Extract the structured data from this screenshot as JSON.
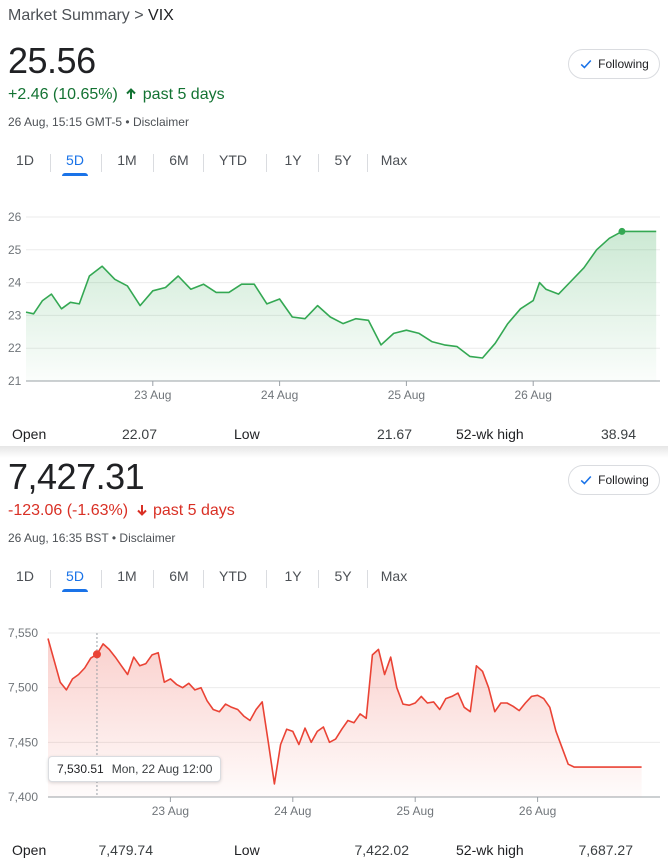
{
  "breadcrumb": {
    "parent": "Market Summary",
    "separator": " > ",
    "current": "VIX"
  },
  "tabs": [
    "1D",
    "5D",
    "1M",
    "6M",
    "YTD",
    "1Y",
    "5Y",
    "Max"
  ],
  "follow_label": "Following",
  "vix": {
    "price": "25.56",
    "change": "+2.46 (10.65%)",
    "period": "past 5 days",
    "timestamp": "26 Aug, 15:15 GMT-5",
    "disclaimer": "Disclaimer",
    "active_tab": "5D",
    "stats": {
      "open_label": "Open",
      "open": "22.07",
      "low_label": "Low",
      "low": "21.67",
      "high52_label": "52-wk high",
      "high52": "38.94"
    }
  },
  "ftse": {
    "price": "7,427.31",
    "change": "-123.06 (-1.63%)",
    "period": "past 5 days",
    "timestamp": "26 Aug, 16:35 BST",
    "disclaimer": "Disclaimer",
    "active_tab": "5D",
    "tooltip": {
      "value": "7,530.51",
      "date": "Mon, 22 Aug 12:00"
    },
    "stats": {
      "open_label": "Open",
      "open": "7,479.74",
      "low_label": "Low",
      "low": "7,422.02",
      "high52_label": "52-wk high",
      "high52": "7,687.27"
    }
  },
  "colors": {
    "up": "#137333",
    "down": "#d93025",
    "line_up": "#34a853",
    "line_down": "#ea4335",
    "accent": "#1a73e8"
  },
  "chart_data": [
    {
      "type": "area",
      "y_ticks": [
        "26",
        "25",
        "24",
        "23",
        "22",
        "21"
      ],
      "ylim": [
        21,
        26
      ],
      "x_tick_labels": [
        "23 Aug",
        "24 Aug",
        "25 Aug",
        "26 Aug"
      ],
      "x_ticks_at": [
        1,
        2,
        3,
        4
      ],
      "xlim": [
        0,
        5
      ],
      "series": [
        {
          "x": [
            0.0,
            0.06,
            0.13,
            0.2,
            0.28,
            0.35,
            0.42,
            0.5,
            0.6,
            0.7,
            0.8,
            0.9,
            1.0,
            1.1,
            1.2,
            1.3,
            1.4,
            1.5,
            1.6,
            1.7,
            1.8,
            1.9,
            2.0,
            2.1,
            2.2,
            2.3,
            2.4,
            2.5,
            2.6,
            2.7,
            2.8,
            2.9,
            3.0,
            3.1,
            3.2,
            3.3,
            3.4,
            3.5,
            3.6,
            3.7,
            3.8,
            3.9,
            4.0,
            4.05,
            4.1,
            4.2,
            4.3,
            4.4,
            4.5,
            4.6,
            4.7,
            4.8,
            4.9,
            4.97
          ],
          "y": [
            23.1,
            23.05,
            23.45,
            23.65,
            23.2,
            23.4,
            23.35,
            24.2,
            24.5,
            24.1,
            23.9,
            23.3,
            23.75,
            23.85,
            24.2,
            23.8,
            23.95,
            23.7,
            23.7,
            23.95,
            23.95,
            23.35,
            23.5,
            22.95,
            22.9,
            23.3,
            22.95,
            22.75,
            22.9,
            22.85,
            22.1,
            22.45,
            22.55,
            22.45,
            22.2,
            22.1,
            22.05,
            21.75,
            21.7,
            22.15,
            22.75,
            23.2,
            23.45,
            24.0,
            23.8,
            23.65,
            24.05,
            24.45,
            25.0,
            25.35,
            25.56,
            25.56,
            25.56,
            25.56
          ]
        }
      ]
    },
    {
      "type": "area",
      "y_ticks": [
        "7,550",
        "7,500",
        "7,450",
        "7,400"
      ],
      "ylim": [
        7400,
        7550
      ],
      "x_tick_labels": [
        "23 Aug",
        "24 Aug",
        "25 Aug",
        "26 Aug"
      ],
      "x_ticks_at": [
        1,
        2,
        3,
        4
      ],
      "xlim": [
        0,
        5
      ],
      "series": [
        {
          "x": [
            0.0,
            0.05,
            0.1,
            0.15,
            0.2,
            0.25,
            0.3,
            0.35,
            0.4,
            0.45,
            0.5,
            0.55,
            0.6,
            0.65,
            0.7,
            0.75,
            0.8,
            0.85,
            0.9,
            0.95,
            1.0,
            1.05,
            1.1,
            1.15,
            1.2,
            1.25,
            1.3,
            1.35,
            1.4,
            1.45,
            1.5,
            1.55,
            1.6,
            1.65,
            1.7,
            1.75,
            1.8,
            1.85,
            1.9,
            1.95,
            2.0,
            2.05,
            2.1,
            2.15,
            2.2,
            2.25,
            2.3,
            2.35,
            2.4,
            2.45,
            2.5,
            2.55,
            2.6,
            2.65,
            2.7,
            2.75,
            2.8,
            2.85,
            2.9,
            2.95,
            3.0,
            3.05,
            3.1,
            3.15,
            3.2,
            3.25,
            3.3,
            3.35,
            3.4,
            3.45,
            3.5,
            3.55,
            3.6,
            3.65,
            3.7,
            3.75,
            3.8,
            3.85,
            3.9,
            3.95,
            4.0,
            4.05,
            4.1,
            4.15,
            4.2,
            4.25,
            4.3,
            4.35,
            4.4,
            4.45,
            4.5,
            4.55,
            4.6,
            4.65,
            4.7,
            4.75,
            4.8,
            4.85
          ],
          "y": [
            7545,
            7525,
            7505,
            7498,
            7508,
            7512,
            7518,
            7527,
            7530.51,
            7540,
            7535,
            7528,
            7520,
            7512,
            7528,
            7520,
            7522,
            7530,
            7532,
            7505,
            7508,
            7503,
            7500,
            7504,
            7498,
            7500,
            7488,
            7480,
            7478,
            7485,
            7482,
            7480,
            7474,
            7470,
            7480,
            7487,
            7450,
            7412,
            7448,
            7462,
            7460,
            7448,
            7463,
            7450,
            7460,
            7464,
            7450,
            7453,
            7462,
            7470,
            7468,
            7476,
            7472,
            7530,
            7535,
            7512,
            7528,
            7500,
            7485,
            7484,
            7486,
            7492,
            7486,
            7487,
            7480,
            7490,
            7492,
            7495,
            7482,
            7478,
            7520,
            7515,
            7500,
            7478,
            7486,
            7486,
            7483,
            7479,
            7486,
            7492,
            7493,
            7490,
            7482,
            7460,
            7445,
            7430,
            7427.31,
            7427.31,
            7427.31,
            7427.31,
            7427.31,
            7427.31,
            7427.31,
            7427.31,
            7427.31,
            7427.31,
            7427.31,
            7427.31
          ]
        }
      ]
    }
  ]
}
